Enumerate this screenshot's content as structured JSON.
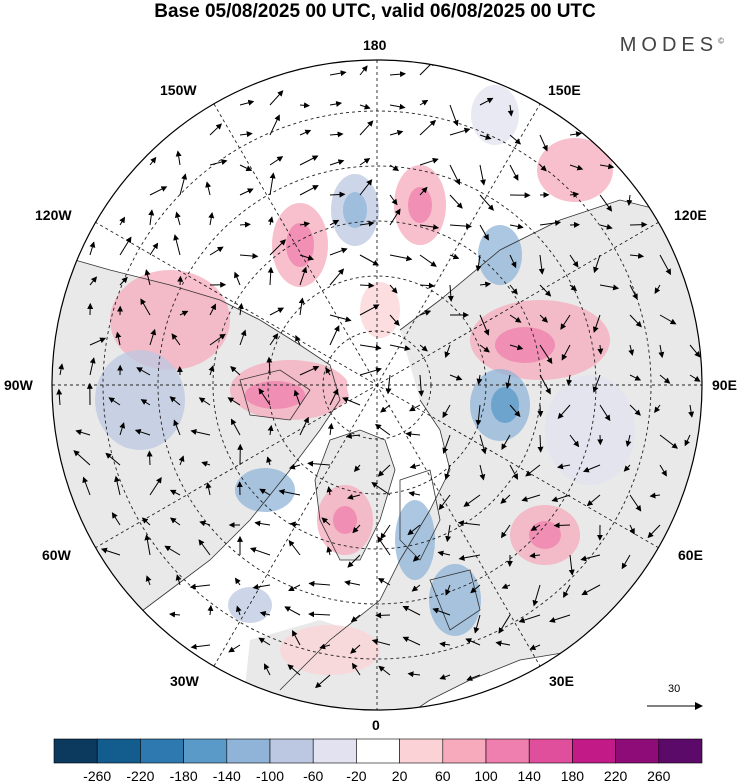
{
  "header": {
    "title": "Base 05/08/2025 00 UTC, valid 06/08/2025 00 UTC",
    "logo": "MODES",
    "logo_mark": "©"
  },
  "map": {
    "projection": "north-polar-stereographic",
    "longitude_labels": {
      "lon_180": "180",
      "lon_150w": "150W",
      "lon_150e": "150E",
      "lon_120w": "120W",
      "lon_120e": "120E",
      "lon_90w": "90W",
      "lon_90e": "90E",
      "lon_60w": "60W",
      "lon_60e": "60E",
      "lon_30w": "30W",
      "lon_30e": "30E",
      "lon_0": "0"
    },
    "vector_reference": "30",
    "colors": {
      "land": "#e9e9e9",
      "ocean": "#ffffff",
      "coast": "#333333"
    }
  },
  "colorbar": {
    "ticks": [
      "-260",
      "-220",
      "-180",
      "-140",
      "-100",
      "-60",
      "-20",
      "20",
      "60",
      "100",
      "140",
      "180",
      "220",
      "260"
    ],
    "colors": [
      "#0b3a5e",
      "#125c8e",
      "#2e7ab0",
      "#5a9ac8",
      "#8fb4d8",
      "#bcc8e2",
      "#e2e2f0",
      "#ffffff",
      "#fbd3d6",
      "#f6aabb",
      "#ef7fae",
      "#e04f9c",
      "#c21a86",
      "#8e0c78",
      "#5c0a6a"
    ]
  }
}
